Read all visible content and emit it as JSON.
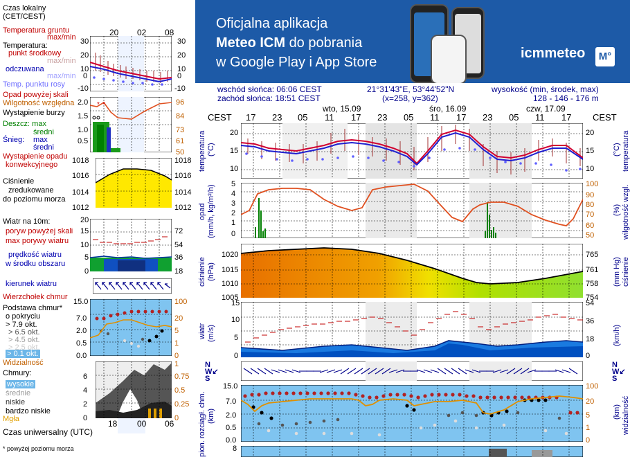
{
  "legend": {
    "time_zone_title": "Czas lokalny",
    "time_zone_sub": "(CET/CEST)",
    "top_hours": [
      "20",
      "02",
      "08"
    ],
    "ground_temp": "Temperatura gruntu",
    "ground_temp_sub": "max/min",
    "temperature": "Temperatura:",
    "mid_point": "punkt środkowy",
    "max_min": "max/min",
    "feels_like": "odczuwana",
    "dew_point": "Temp. punktu rosy",
    "temp_ticks": [
      "30",
      "20",
      "10",
      "0",
      "-10"
    ],
    "precip_above": "Opad powyżej skali",
    "humidity": "Wilgotność względna",
    "storm": "Wystąpienie burzy",
    "rain_max": "Deszcz: max",
    "rain_mean": "średni",
    "snow_max": "Śnieg:",
    "snow_max2": "max",
    "snow_mean": "średni",
    "precip_occurrence": "Wystąpienie opadu",
    "convective": "konwekcyjnego",
    "precip_ticks": [
      "2.0",
      "1.5",
      "1.0",
      "0.5"
    ],
    "humidity_ticks": [
      "96",
      "84",
      "73",
      "61",
      "50"
    ],
    "pressure_title": "Ciśnienie",
    "pressure_sub1": "zredukowane",
    "pressure_sub2": "do poziomu morza",
    "pressure_ticks": [
      "1018",
      "1016",
      "1014",
      "1012"
    ],
    "wind_title": "Wiatr na 10m:",
    "gusts_above": "poryw powyżej skali",
    "max_gusts": "max porywy wiatru",
    "wind_speed": "prędkość wiatru",
    "wind_speed_sub": "w środku obszaru",
    "wind_ticks_l": [
      "20",
      "15",
      "10",
      "5",
      "0"
    ],
    "wind_ticks_r": [
      "72",
      "54",
      "36",
      "18",
      "0"
    ],
    "wind_dir": "kierunek wiatru",
    "cloud_top": "Wierzchołek chmur",
    "cloud_base": "Podstawa chmur*",
    "cloud_cover": "o pokryciu",
    "okt": [
      "> 7.9 okt.",
      "> 6.5 okt.",
      "> 4.5 okt.",
      "> 2.5 okt.",
      "> 0.1 okt."
    ],
    "cloud_ticks": [
      "15.0",
      "7.0",
      "2.0",
      "0.5",
      "0.0"
    ],
    "cloud_ticks_r": [
      "100",
      "20",
      "5",
      "1",
      "0"
    ],
    "visibility": "Widzialność",
    "clouds": "Chmury:",
    "high": "wysokie",
    "mid": "średnie",
    "low": "niskie",
    "very_low": "bardzo niskie",
    "fog": "Mgła",
    "cloud_l_ticks": [
      "6",
      "4",
      "2",
      "0"
    ],
    "cloud_r_ticks": [
      "1",
      "0.75",
      "0.5",
      "0.25",
      "0"
    ],
    "bottom_hours": [
      "18",
      "00",
      "06"
    ],
    "utc": "Czas uniwersalny (UTC)",
    "footnote": "* powyżej poziomu morza"
  },
  "banner": {
    "line1": "Oficjalna aplikacja",
    "line2_bold": "Meteo ICM",
    "line2_rest": "do pobrania",
    "line3": "w Google Play i App Store",
    "logo_text": "icmmeteo",
    "logo_box": "M°"
  },
  "info": {
    "sunrise": "wschód słońca: 06:06 CEST",
    "sunset": "zachód słońca: 18:51 CEST",
    "coords": "21°31'43\"E, 53°44'52\"N",
    "grid": "(x=258,  y=362)",
    "height_label": "wysokość (min, środek, max)",
    "height_values": "128 - 146 - 176 m"
  },
  "timeline": {
    "tz_left": "CEST",
    "tz_right": "CEST",
    "days": [
      "wto, 15.09",
      "śro, 16.09",
      "czw, 17.09"
    ],
    "hours": [
      "17",
      "23",
      "05",
      "11",
      "17",
      "23",
      "05",
      "11",
      "17",
      "23",
      "05",
      "11",
      "17"
    ]
  },
  "panels": {
    "temp_label": "temperatura",
    "temp_unit": "(°C)",
    "temp_ticks": [
      "20",
      "15",
      "10"
    ],
    "precip_label": "opad",
    "precip_unit": "(mm/h, kg/m²/h)",
    "precip_ticks": [
      "5",
      "4",
      "3",
      "2",
      "1",
      "0"
    ],
    "hum_label": "wilgotność wzgl.",
    "hum_unit": "(%)",
    "hum_ticks": [
      "100",
      "90",
      "80",
      "70",
      "60",
      "50"
    ],
    "pres_label": "ciśnienie",
    "pres_unit": "(hPa)",
    "pres_ticks": [
      "1020",
      "1015",
      "1010",
      "1005"
    ],
    "pres_r_label": "ciśnienie",
    "pres_r_unit": "(mm Hg)",
    "pres_r_ticks": [
      "765",
      "761",
      "758",
      "754"
    ],
    "wind_label": "wiatr",
    "wind_unit": "(m/s)",
    "wind_ticks": [
      "15",
      "10",
      "5",
      "0"
    ],
    "wind_r_unit": "(km/h)",
    "wind_r_ticks": [
      "54",
      "36",
      "18",
      "0"
    ],
    "vis_label": "widzialność",
    "vis_unit": "(km)",
    "cloud_l_label": "pion. rozciągł. chm.",
    "cloud_l_unit": "(km)",
    "cloud_ticks": [
      "15.0",
      "7.0",
      "2.0",
      "0.5",
      "0.0"
    ],
    "vis_ticks": [
      "100",
      "20",
      "5",
      "1",
      "0"
    ],
    "bottom_tick": "8"
  },
  "colors": {
    "banner": "#1d5aa7",
    "temp_line": "#d00030",
    "feels_line": "#2020d0",
    "dew_dots": "#6060ff",
    "humidity": "#e05020",
    "precip": "#008000",
    "pressure_fill": "#ffe000",
    "wind_fill": "#0040c0"
  }
}
